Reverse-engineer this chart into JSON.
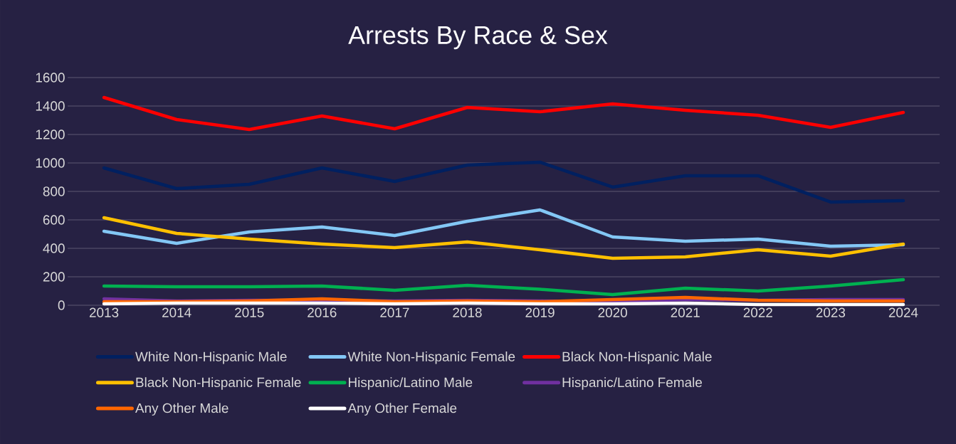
{
  "chart_data": {
    "type": "line",
    "title": "Arrests By Race & Sex",
    "categories": [
      "2013",
      "2014",
      "2015",
      "2016",
      "2017",
      "2018",
      "2019",
      "2020",
      "2021",
      "2022",
      "2023",
      "2024"
    ],
    "series": [
      {
        "name": "White Non-Hispanic Male",
        "color": "#002060",
        "values": [
          965,
          820,
          850,
          965,
          870,
          985,
          1005,
          830,
          910,
          910,
          725,
          735
        ]
      },
      {
        "name": "White Non-Hispanic Female",
        "color": "#83c7f5",
        "values": [
          520,
          435,
          515,
          550,
          490,
          590,
          670,
          480,
          450,
          465,
          415,
          425
        ]
      },
      {
        "name": "Black Non-Hispanic Male",
        "color": "#ff0000",
        "values": [
          1460,
          1305,
          1235,
          1330,
          1240,
          1390,
          1360,
          1415,
          1370,
          1335,
          1250,
          1355
        ]
      },
      {
        "name": "Black Non-Hispanic Female",
        "color": "#ffc000",
        "values": [
          615,
          505,
          465,
          430,
          405,
          445,
          390,
          330,
          340,
          390,
          345,
          430
        ]
      },
      {
        "name": "Hispanic/Latino Male",
        "color": "#00b050",
        "values": [
          135,
          130,
          130,
          135,
          105,
          140,
          112,
          75,
          120,
          100,
          135,
          180
        ]
      },
      {
        "name": "Hispanic/Latino Female",
        "color": "#7030a0",
        "values": [
          45,
          30,
          35,
          35,
          30,
          35,
          null,
          25,
          40,
          35,
          40,
          40
        ]
      },
      {
        "name": "Any Other Male",
        "color": "#ff6600",
        "values": [
          25,
          25,
          30,
          45,
          25,
          30,
          25,
          40,
          55,
          35,
          30,
          30
        ]
      },
      {
        "name": "Any Other Female",
        "color": "#ffffff",
        "values": [
          10,
          15,
          15,
          15,
          10,
          15,
          10,
          10,
          15,
          5,
          5,
          5
        ]
      }
    ],
    "ylim": [
      0,
      1600
    ],
    "yticks": [
      0,
      200,
      400,
      600,
      800,
      1000,
      1200,
      1400,
      1600
    ],
    "grid": "y",
    "legend": "bottom"
  }
}
